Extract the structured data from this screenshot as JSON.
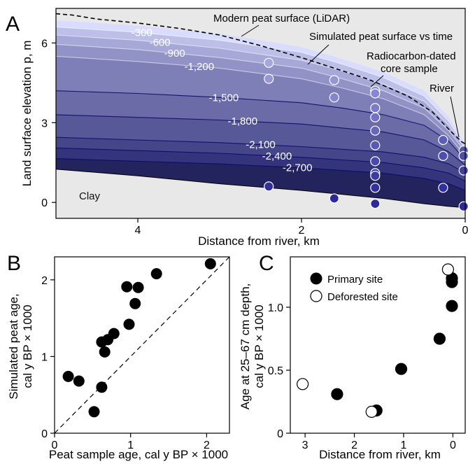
{
  "panels": {
    "a": "A",
    "b": "B",
    "c": "C"
  },
  "chart_data": [
    {
      "panel": "A",
      "type": "area",
      "xlabel": "Distance from river, km",
      "ylabel": "Land surface elevation p, m",
      "xlim": [
        5,
        0
      ],
      "ylim": [
        -0.6,
        7.3
      ],
      "x_reversed": true,
      "xticks": [
        4,
        2,
        0
      ],
      "yticks": [
        0,
        3,
        6
      ],
      "clay_label": "Clay",
      "clay_color": "#e8e8e8",
      "peat_color_top": "#d9dcff",
      "peat_color_bottom": "#22226e",
      "x": [
        5.0,
        4.0,
        3.0,
        2.0,
        1.5,
        1.0,
        0.5,
        0.2,
        0.0
      ],
      "lidar_surface": {
        "name": "Modern peat surface (LiDAR)",
        "x": [
          5.0,
          4.8,
          4.5,
          4.0,
          3.5,
          3.0,
          2.5,
          2.0,
          1.5,
          1.2,
          1.0,
          0.7,
          0.4,
          0.2,
          0.05,
          0.0
        ],
        "y": [
          7.1,
          7.05,
          6.9,
          6.75,
          6.55,
          6.3,
          5.9,
          5.45,
          4.95,
          4.65,
          4.4,
          4.0,
          3.4,
          2.75,
          2.3,
          2.2
        ]
      },
      "bottom_line": {
        "y": [
          1.25,
          1.0,
          0.7,
          0.45,
          0.3,
          0.15,
          -0.05,
          -0.15,
          -0.2
        ]
      },
      "isochrons": [
        {
          "label": "",
          "y": [
            6.85,
            6.65,
            6.35,
            5.85,
            5.4,
            4.9,
            4.2,
            3.2,
            2.2
          ]
        },
        {
          "label": "-300",
          "y": [
            6.6,
            6.4,
            6.1,
            5.65,
            5.2,
            4.7,
            4.0,
            3.05,
            2.1
          ]
        },
        {
          "label": "-600",
          "y": [
            6.3,
            6.1,
            5.8,
            5.35,
            4.95,
            4.45,
            3.8,
            2.9,
            2.0
          ]
        },
        {
          "label": "-900",
          "y": [
            5.95,
            5.75,
            5.45,
            5.05,
            4.65,
            4.2,
            3.55,
            2.7,
            1.9
          ]
        },
        {
          "label": "-1,200",
          "y": [
            5.5,
            5.3,
            5.05,
            4.65,
            4.3,
            3.9,
            3.3,
            2.5,
            1.75
          ]
        },
        {
          "label": "-1,500",
          "y": [
            4.2,
            4.1,
            3.95,
            3.75,
            3.55,
            3.3,
            2.9,
            2.3,
            1.6
          ]
        },
        {
          "label": "-1,800",
          "y": [
            3.3,
            3.2,
            3.1,
            2.95,
            2.8,
            2.65,
            2.35,
            1.9,
            1.4
          ]
        },
        {
          "label": "-2,100",
          "y": [
            2.45,
            2.35,
            2.25,
            2.1,
            2.0,
            1.9,
            1.7,
            1.45,
            1.1
          ]
        },
        {
          "label": "-2,400",
          "y": [
            2.05,
            1.95,
            1.85,
            1.7,
            1.6,
            1.5,
            1.3,
            1.1,
            0.8
          ]
        },
        {
          "label": "-2,700",
          "y": [
            1.65,
            1.55,
            1.45,
            1.3,
            1.2,
            1.1,
            0.9,
            0.7,
            0.45
          ]
        }
      ],
      "core_samples": {
        "x": [
          2.4,
          2.4,
          2.4,
          1.6,
          1.6,
          1.6,
          1.1,
          1.1,
          1.1,
          1.1,
          1.1,
          1.1,
          1.1,
          1.1,
          1.1,
          1.1,
          1.1,
          0.27,
          0.27,
          0.27,
          0.02,
          0.02,
          0.02,
          0.02
        ],
        "y": [
          5.25,
          4.65,
          0.6,
          4.6,
          3.95,
          0.15,
          4.2,
          4.1,
          3.55,
          3.2,
          2.7,
          2.15,
          1.55,
          1.1,
          1.0,
          0.55,
          -0.05,
          2.35,
          1.75,
          0.55,
          1.95,
          1.75,
          1.2,
          -0.15
        ]
      },
      "annotations": {
        "lidar": "Modern peat surface (LiDAR)",
        "simulated": "Simulated peat surface vs time",
        "radiocarbon_line1": "Radiocarbon-dated",
        "radiocarbon_line2": "core sample",
        "river": "River"
      }
    },
    {
      "panel": "B",
      "type": "scatter",
      "xlabel": "Peat sample age, cal y BP × 1000",
      "ylabel_line1": "Simulated peat age,",
      "ylabel_line2": "cal y BP × 1000",
      "xlim": [
        0,
        2.3
      ],
      "ylim": [
        0,
        2.3
      ],
      "xticks": [
        0,
        1,
        2
      ],
      "yticks": [
        0,
        1,
        2
      ],
      "one_to_one_line": true,
      "x": [
        0.18,
        0.32,
        0.52,
        0.62,
        0.62,
        0.66,
        0.7,
        0.78,
        0.95,
        0.98,
        1.06,
        1.1,
        1.34,
        2.05
      ],
      "y": [
        0.74,
        0.68,
        0.28,
        0.6,
        1.19,
        1.06,
        1.22,
        1.3,
        1.91,
        1.42,
        1.69,
        1.9,
        2.08,
        2.21
      ]
    },
    {
      "panel": "C",
      "type": "scatter",
      "xlabel": "Distance from river, km",
      "ylabel_line1": "Age at 25–67 cm depth,",
      "ylabel_line2": "cal y BP × 1000",
      "xlim": [
        3.3,
        -0.25
      ],
      "ylim": [
        0,
        1.4
      ],
      "x_reversed": true,
      "xticks": [
        3,
        2,
        1,
        0
      ],
      "yticks": [
        0,
        0.5,
        1.0
      ],
      "ytick_labels": [
        "0",
        "0.5",
        "1.0"
      ],
      "series": [
        {
          "name": "Primary site",
          "filled": true,
          "x": [
            2.35,
            1.55,
            1.05,
            0.27,
            0.02,
            0.02,
            0.02
          ],
          "y": [
            0.31,
            0.18,
            0.51,
            0.75,
            1.01,
            1.2,
            1.23
          ]
        },
        {
          "name": "Deforested site",
          "filled": false,
          "x": [
            3.05,
            1.65,
            0.1
          ],
          "y": [
            0.39,
            0.17,
            1.3
          ]
        }
      ]
    }
  ]
}
